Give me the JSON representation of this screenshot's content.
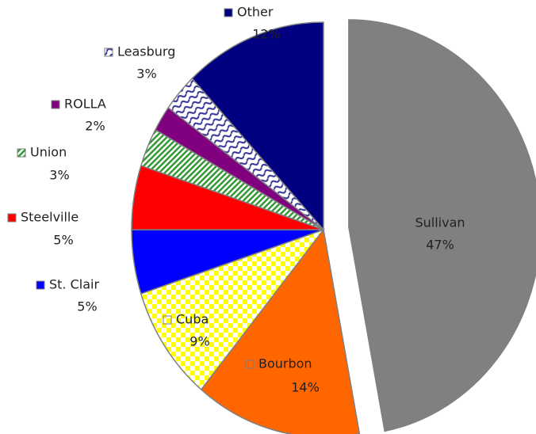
{
  "chart_data": {
    "type": "pie",
    "categories": [
      "Sullivan",
      "Bourbon",
      "Cuba",
      "St. Clair",
      "Steelville",
      "Union",
      "ROLLA",
      "Leasburg",
      "Other"
    ],
    "values": [
      47,
      14,
      9,
      5,
      5,
      3,
      2,
      3,
      12
    ],
    "value_labels": [
      "47%",
      "14%",
      "9%",
      "5%",
      "5%",
      "3%",
      "2%",
      "3%",
      "12%"
    ],
    "colors": [
      "#808080",
      "#ff6600",
      "#ffff00",
      "#0000ff",
      "#ff0000",
      "#339933",
      "#800080",
      "#333399",
      "#000080"
    ]
  }
}
